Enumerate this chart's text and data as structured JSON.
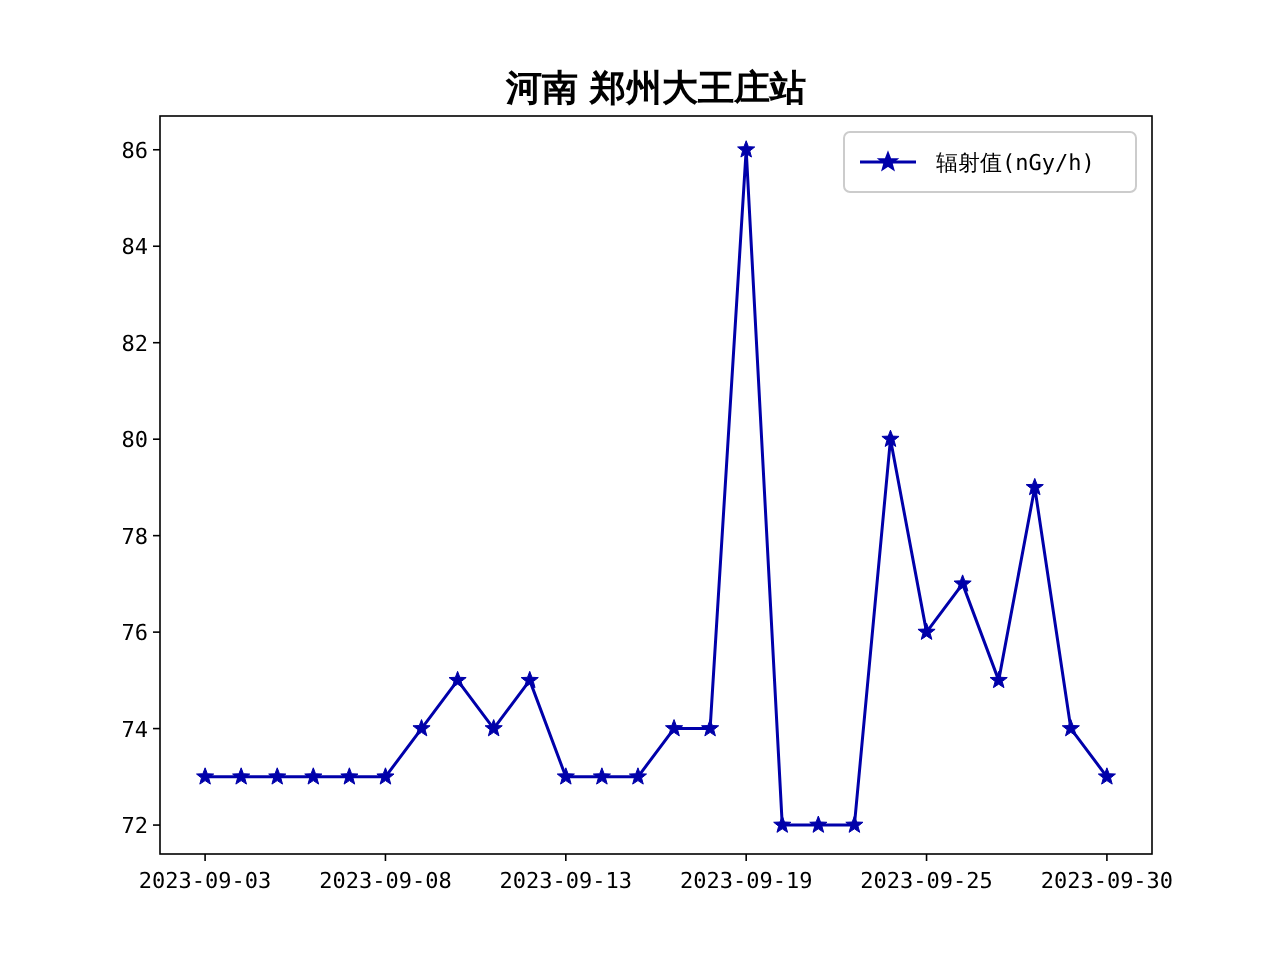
{
  "chart_data": {
    "type": "line",
    "title": "河南 郑州大王庄站",
    "categories": [
      "2023-09-03",
      null,
      null,
      null,
      null,
      "2023-09-08",
      null,
      null,
      null,
      null,
      "2023-09-13",
      null,
      null,
      null,
      null,
      "2023-09-19",
      null,
      null,
      null,
      null,
      "2023-09-25",
      null,
      null,
      null,
      null,
      "2023-09-30"
    ],
    "series": [
      {
        "name": "辐射值(nGy/h)",
        "color": "#0000aa",
        "values": [
          73,
          73,
          73,
          73,
          73,
          73,
          74,
          75,
          74,
          75,
          73,
          73,
          73,
          74,
          74,
          86,
          72,
          72,
          72,
          80,
          76,
          77,
          75,
          79,
          74,
          73
        ]
      }
    ],
    "ylim": [
      71.4,
      86.7
    ],
    "yticks": [
      72,
      74,
      76,
      78,
      80,
      82,
      84,
      86
    ],
    "marker": "star",
    "line_style": "solid",
    "legend": "top right",
    "grid": false
  }
}
